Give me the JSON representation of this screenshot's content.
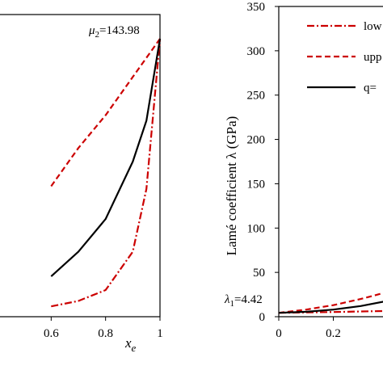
{
  "chart_data": [
    {
      "panel": "left",
      "type": "line",
      "xlabel_main": "x",
      "xlabel_sub": "e",
      "xlim": [
        0.4,
        1.0
      ],
      "x_ticks": [
        {
          "value": 0.6,
          "label": "0.6"
        },
        {
          "value": 0.8,
          "label": "0.8"
        },
        {
          "value": 1.0,
          "label": "1"
        }
      ],
      "annotation": {
        "prefix": "μ",
        "sub": "2",
        "suffix": "=143.98"
      },
      "series": [
        {
          "color": "#cc0000",
          "dash": "dashdot",
          "x": [
            0.6,
            0.7,
            0.8,
            0.9,
            0.95,
            1.0
          ],
          "y": [
            0.02,
            0.04,
            0.08,
            0.22,
            0.45,
            1.0
          ]
        },
        {
          "color": "#cc0000",
          "dash": "dashed",
          "x": [
            0.6,
            0.7,
            0.8,
            0.9,
            1.0
          ],
          "y": [
            0.46,
            0.6,
            0.72,
            0.86,
            1.0
          ]
        },
        {
          "color": "#000000",
          "dash": "solid",
          "x": [
            0.6,
            0.7,
            0.8,
            0.9,
            0.95,
            1.0
          ],
          "y": [
            0.13,
            0.22,
            0.34,
            0.55,
            0.7,
            1.0
          ]
        }
      ]
    },
    {
      "panel": "right",
      "type": "line",
      "ylabel": "Lamé coefficient λ (GPa)",
      "ylim": [
        0,
        350
      ],
      "y_ticks": [
        0,
        50,
        100,
        150,
        200,
        250,
        300,
        350
      ],
      "xlim": [
        0,
        0.4
      ],
      "x_ticks": [
        {
          "value": 0,
          "label": "0"
        },
        {
          "value": 0.2,
          "label": "0.2"
        }
      ],
      "annotation": {
        "prefix": "λ",
        "sub": "1",
        "suffix": "=4.42"
      },
      "legend": {
        "placement": "top-right",
        "entries": [
          {
            "label": "low",
            "color": "#cc0000",
            "dash": "dashdot"
          },
          {
            "label": "upp",
            "color": "#cc0000",
            "dash": "dashed"
          },
          {
            "label": "q=",
            "color": "#000000",
            "dash": "solid"
          }
        ]
      },
      "series": [
        {
          "color": "#cc0000",
          "dash": "dashdot",
          "x": [
            0,
            0.1,
            0.2,
            0.3,
            0.4
          ],
          "y": [
            4.42,
            4.8,
            5.3,
            5.9,
            6.5
          ]
        },
        {
          "color": "#cc0000",
          "dash": "dashed",
          "x": [
            0,
            0.1,
            0.2,
            0.3,
            0.4
          ],
          "y": [
            4.42,
            8,
            13,
            20,
            28
          ]
        },
        {
          "color": "#000000",
          "dash": "solid",
          "x": [
            0,
            0.1,
            0.2,
            0.3,
            0.4
          ],
          "y": [
            4.42,
            5.6,
            8,
            12,
            18
          ]
        }
      ]
    }
  ]
}
